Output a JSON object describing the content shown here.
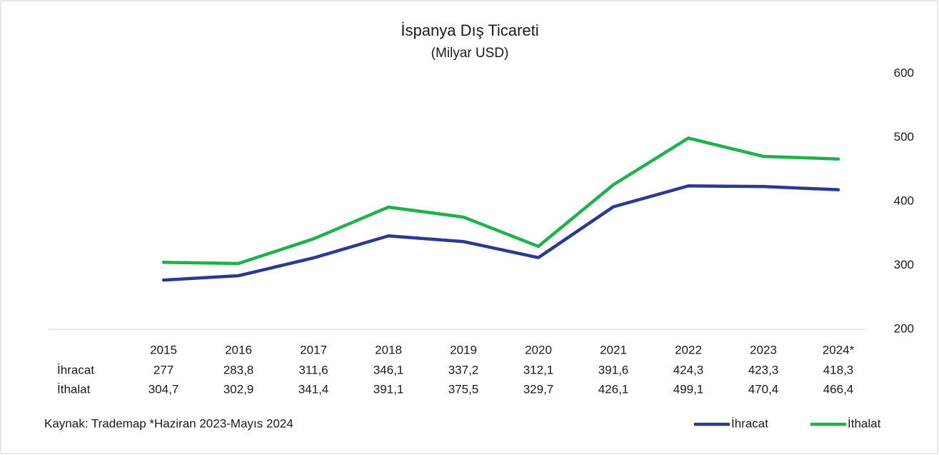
{
  "chart_data": {
    "type": "line",
    "title": "İspanya Dış Ticareti",
    "subtitle": "(Milyar USD)",
    "categories": [
      "2015",
      "2016",
      "2017",
      "2018",
      "2019",
      "2020",
      "2021",
      "2022",
      "2023",
      "2024*"
    ],
    "series": [
      {
        "name": "İhracat",
        "color": "#2b3990",
        "values": [
          277,
          283.8,
          311.6,
          346.1,
          337.2,
          312.1,
          391.6,
          424.3,
          423.3,
          418.3
        ],
        "value_labels": [
          "277",
          "283,8",
          "311,6",
          "346,1",
          "337,2",
          "312,1",
          "391,6",
          "424,3",
          "423,3",
          "418,3"
        ]
      },
      {
        "name": "İthalat",
        "color": "#1fb24b",
        "values": [
          304.7,
          302.9,
          341.4,
          391.1,
          375.5,
          329.7,
          426.1,
          499.1,
          470.4,
          466.4
        ],
        "value_labels": [
          "304,7",
          "302,9",
          "341,4",
          "391,1",
          "375,5",
          "329,7",
          "426,1",
          "499,1",
          "470,4",
          "466,4"
        ]
      }
    ],
    "ylim": [
      200,
      600
    ],
    "yticks": [
      200,
      300,
      400,
      500,
      600
    ],
    "grid": false,
    "legend": "bottom-right",
    "source": "Kaynak: Trademap *Haziran 2023-Mayıs 2024"
  }
}
